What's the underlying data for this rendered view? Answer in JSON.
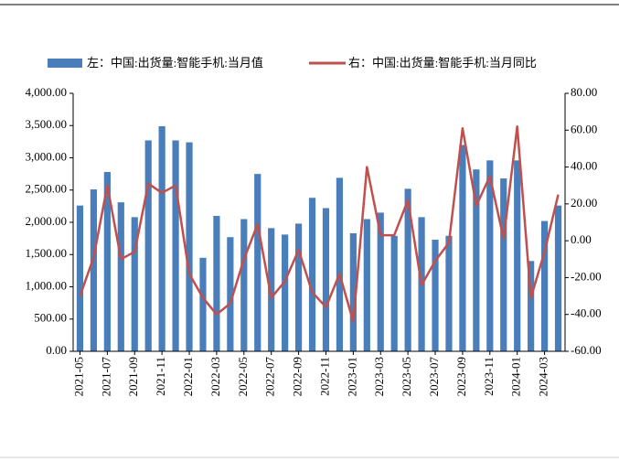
{
  "chart_data": {
    "type": "bar-line",
    "categories": [
      "2021-05",
      null,
      "2021-07",
      null,
      "2021-09",
      null,
      "2021-11",
      null,
      "2022-01",
      null,
      "2022-03",
      null,
      "2022-05",
      null,
      "2022-07",
      null,
      "2022-09",
      null,
      "2022-11",
      null,
      "2023-01",
      null,
      "2023-03",
      null,
      "2023-05",
      null,
      "2023-07",
      null,
      "2023-09",
      null,
      "2023-11",
      null,
      "2024-01",
      null,
      "2024-03",
      null
    ],
    "series": [
      {
        "name": "左：中国:出货量:智能手机:当月值",
        "type": "bar",
        "color": "#4a7ebb",
        "values": [
          2260,
          2510,
          2780,
          2310,
          2080,
          3270,
          3490,
          3270,
          3240,
          1450,
          2100,
          1770,
          2050,
          2750,
          1910,
          1810,
          1980,
          2380,
          2220,
          2690,
          1830,
          2050,
          2150,
          1790,
          2520,
          2080,
          1730,
          1790,
          3200,
          2820,
          2960,
          2680,
          2960,
          1400,
          2020,
          2260
        ]
      },
      {
        "name": "右：中国:出货量:智能手机:当月同比",
        "type": "line",
        "axis": "y2",
        "color": "#c0504d",
        "values": [
          -30,
          -9,
          30,
          -10,
          -6,
          31,
          26,
          30,
          -18,
          -31,
          -40,
          -34,
          -10,
          9,
          -31,
          -22,
          -5,
          -28,
          -36,
          -18,
          -44,
          40,
          3,
          3,
          22,
          -24,
          -11,
          -1,
          61,
          19,
          35,
          1,
          62,
          -31,
          -6,
          25
        ]
      }
    ],
    "ylim": [
      0,
      4000
    ],
    "yticks": [
      {
        "value": 0,
        "label": "0.00"
      },
      {
        "value": 500,
        "label": "500.00"
      },
      {
        "value": 1000,
        "label": "1,000.00"
      },
      {
        "value": 1500,
        "label": "1,500.00"
      },
      {
        "value": 2000,
        "label": "2,000.00"
      },
      {
        "value": 2500,
        "label": "2,500.00"
      },
      {
        "value": 3000,
        "label": "3,000.00"
      },
      {
        "value": 3500,
        "label": "3,500.00"
      },
      {
        "value": 4000,
        "label": "4,000.00"
      }
    ],
    "y2lim": [
      -60,
      80
    ],
    "y2ticks": [
      {
        "value": -60,
        "label": "-60.00"
      },
      {
        "value": -40,
        "label": "-40.00"
      },
      {
        "value": -20,
        "label": "-20.00"
      },
      {
        "value": 0,
        "label": "0.00"
      },
      {
        "value": 20,
        "label": "20.00"
      },
      {
        "value": 40,
        "label": "40.00"
      },
      {
        "value": 60,
        "label": "60.00"
      },
      {
        "value": 80,
        "label": "80.00"
      }
    ],
    "legend": "top"
  }
}
